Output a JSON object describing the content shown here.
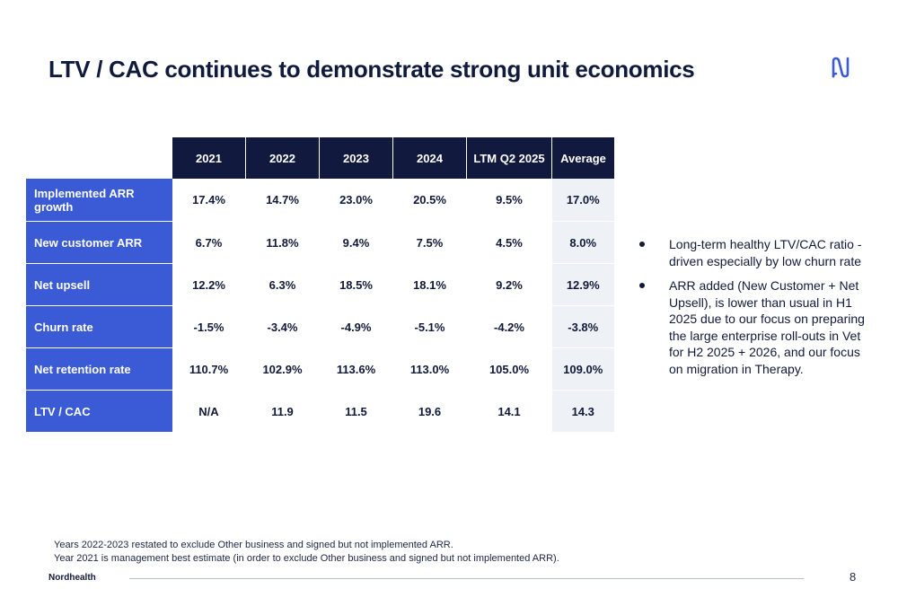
{
  "title": "LTV / CAC continues to demonstrate strong unit economics",
  "logo_icon": "nordhealth-logo-icon",
  "table": {
    "columns": [
      "2021",
      "2022",
      "2023",
      "2024",
      "LTM Q2 2025",
      "Average"
    ],
    "rows": [
      {
        "label": "Implemented ARR growth",
        "values": [
          "17.4%",
          "14.7%",
          "23.0%",
          "20.5%",
          "9.5%",
          "17.0%"
        ]
      },
      {
        "label": "New customer ARR",
        "values": [
          "6.7%",
          "11.8%",
          "9.4%",
          "7.5%",
          "4.5%",
          "8.0%"
        ]
      },
      {
        "label": "Net upsell",
        "values": [
          "12.2%",
          "6.3%",
          "18.5%",
          "18.1%",
          "9.2%",
          "12.9%"
        ]
      },
      {
        "label": "Churn rate",
        "values": [
          "-1.5%",
          "-3.4%",
          "-4.9%",
          "-5.1%",
          "-4.2%",
          "-3.8%"
        ]
      },
      {
        "label": "Net retention rate",
        "values": [
          "110.7%",
          "102.9%",
          "113.6%",
          "113.0%",
          "105.0%",
          "109.0%"
        ]
      },
      {
        "label": "LTV / CAC",
        "values": [
          "N/A",
          "11.9",
          "11.5",
          "19.6",
          "14.1",
          "14.3"
        ]
      }
    ]
  },
  "bullets": [
    "Long-term healthy LTV/CAC ratio - driven especially by low churn rate",
    "ARR added (New Customer + Net Upsell), is lower than usual in H1 2025 due to our focus on preparing the large enterprise roll-outs in Vet for H2 2025 + 2026, and our focus on migration in Therapy."
  ],
  "footnotes": [
    "Years 2022-2023 restated to exclude Other business and signed but not implemented ARR.",
    "Year 2021 is management best estimate (in order to exclude Other business and signed but not implemented ARR)."
  ],
  "footer": {
    "brand": "Nordhealth",
    "page_number": "8"
  },
  "colors": {
    "header_bg": "#111a3e",
    "row_label_bg": "#3b5bd6",
    "average_bg": "#eef1f5"
  }
}
